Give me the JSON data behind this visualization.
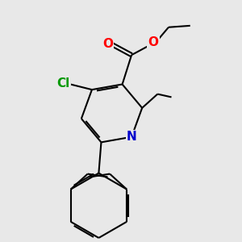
{
  "bg_color": "#e8e8e8",
  "bond_color": "#000000",
  "bond_width": 1.5,
  "atom_colors": {
    "O": "#ff0000",
    "N": "#0000cc",
    "Cl": "#009900",
    "C": "#000000"
  },
  "font_size": 11
}
